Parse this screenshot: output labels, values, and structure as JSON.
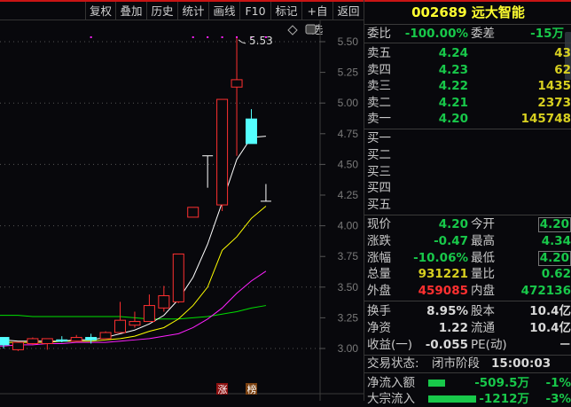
{
  "toolbar": {
    "tabs": [
      "复权",
      "叠加",
      "历史",
      "统计",
      "画线",
      "F10",
      "标记",
      "+自选",
      "返回"
    ]
  },
  "stock": {
    "code": "002689",
    "name": "远大智能",
    "title": "002689 远大智能"
  },
  "colors": {
    "up": "#ff3030",
    "down": "#54ffff",
    "ma5": "#ffffff",
    "ma10": "#ffff00",
    "ma20": "#ff20ff",
    "ma60": "#00e000",
    "accent": "#c81414"
  },
  "chart_data": {
    "type": "candlestick",
    "y_axis_ticks": [
      "5.50",
      "5.25",
      "5.00",
      "4.75",
      "4.50",
      "4.25",
      "4.00",
      "3.75",
      "3.50",
      "3.25",
      "3.00"
    ],
    "ylim": [
      3.0,
      5.5
    ],
    "max_label": "5.53",
    "candles": [
      {
        "o": 3.09,
        "h": 3.09,
        "l": 3.0,
        "c": 3.03
      },
      {
        "o": 2.99,
        "h": 3.05,
        "l": 2.98,
        "c": 3.05
      },
      {
        "o": 3.04,
        "h": 3.09,
        "l": 3.03,
        "c": 3.08
      },
      {
        "o": 3.04,
        "h": 3.08,
        "l": 2.99,
        "c": 3.08
      },
      {
        "o": 3.07,
        "h": 3.1,
        "l": 3.05,
        "c": 3.06
      },
      {
        "o": 3.06,
        "h": 3.11,
        "l": 3.06,
        "c": 3.09
      },
      {
        "o": 3.09,
        "h": 3.12,
        "l": 3.04,
        "c": 3.07
      },
      {
        "o": 3.08,
        "h": 3.14,
        "l": 3.08,
        "c": 3.13
      },
      {
        "o": 3.13,
        "h": 3.38,
        "l": 3.13,
        "c": 3.23
      },
      {
        "o": 3.19,
        "h": 3.3,
        "l": 3.17,
        "c": 3.22
      },
      {
        "o": 3.22,
        "h": 3.44,
        "l": 3.22,
        "c": 3.35
      },
      {
        "o": 3.33,
        "h": 3.51,
        "l": 3.3,
        "c": 3.43
      },
      {
        "o": 3.38,
        "h": 3.77,
        "l": 3.37,
        "c": 3.77
      },
      {
        "o": 4.07,
        "h": 4.15,
        "l": 4.07,
        "c": 4.15
      },
      {
        "o": 4.57,
        "h": 4.57,
        "l": 4.31,
        "c": 4.57
      },
      {
        "o": 4.17,
        "h": 5.03,
        "l": 4.12,
        "c": 5.03
      },
      {
        "o": 5.13,
        "h": 5.53,
        "l": 4.57,
        "c": 5.19
      },
      {
        "o": 4.87,
        "h": 4.95,
        "l": 4.67,
        "c": 4.67
      },
      {
        "o": 4.2,
        "h": 4.34,
        "l": 4.2,
        "c": 4.2
      }
    ],
    "ma5": [
      3.07,
      3.06,
      3.06,
      3.06,
      3.06,
      3.07,
      3.07,
      3.09,
      3.12,
      3.15,
      3.2,
      3.27,
      3.4,
      3.58,
      3.85,
      4.19,
      4.54,
      4.72,
      4.73
    ],
    "ma10": [
      3.05,
      3.05,
      3.05,
      3.05,
      3.06,
      3.06,
      3.06,
      3.07,
      3.08,
      3.1,
      3.14,
      3.17,
      3.24,
      3.35,
      3.5,
      3.8,
      3.91,
      4.06,
      4.16
    ],
    "ma20": [
      3.02,
      3.03,
      3.03,
      3.04,
      3.04,
      3.05,
      3.05,
      3.05,
      3.06,
      3.07,
      3.08,
      3.1,
      3.12,
      3.17,
      3.24,
      3.33,
      3.45,
      3.55,
      3.63
    ],
    "ma60": [
      3.27,
      3.27,
      3.26,
      3.26,
      3.26,
      3.26,
      3.26,
      3.26,
      3.26,
      3.25,
      3.24,
      3.24,
      3.24,
      3.25,
      3.26,
      3.28,
      3.3,
      3.33,
      3.35
    ],
    "marker_dots": [
      6,
      13,
      14,
      15,
      16,
      17,
      18
    ],
    "badges": [
      "涨",
      "榜"
    ]
  },
  "panel": {
    "weibi": {
      "label": "委比",
      "value": "-100.00%",
      "label2": "委差",
      "value2": "-15万"
    },
    "asks": [
      {
        "label": "卖五",
        "price": "4.24",
        "vol": "43"
      },
      {
        "label": "卖四",
        "price": "4.23",
        "vol": "62"
      },
      {
        "label": "卖三",
        "price": "4.22",
        "vol": "1435"
      },
      {
        "label": "卖二",
        "price": "4.21",
        "vol": "2373"
      },
      {
        "label": "卖一",
        "price": "4.20",
        "vol": "145748"
      }
    ],
    "bids": [
      {
        "label": "买一"
      },
      {
        "label": "买二"
      },
      {
        "label": "买三"
      },
      {
        "label": "买四"
      },
      {
        "label": "买五"
      }
    ],
    "quote": [
      {
        "l1": "现价",
        "v1": "4.20",
        "l2": "今开",
        "v2": "4.20"
      },
      {
        "l1": "涨跌",
        "v1": "-0.47",
        "l2": "最高",
        "v2": "4.34"
      },
      {
        "l1": "涨幅",
        "v1": "-10.06%",
        "l2": "最低",
        "v2": "4.20"
      },
      {
        "l1": "总量",
        "v1": "931221",
        "l2": "量比",
        "v2": "0.62"
      },
      {
        "l1": "外盘",
        "v1": "459085",
        "l2": "内盘",
        "v2": "472136"
      }
    ],
    "fund": [
      {
        "l1": "换手",
        "v1": "8.95%",
        "l2": "股本",
        "v2": "10.4亿"
      },
      {
        "l1": "净资",
        "v1": "1.22",
        "l2": "流通",
        "v2": "10.4亿"
      },
      {
        "l1": "收益(一)",
        "v1": "-0.055",
        "l2": "PE(动)",
        "v2": "－"
      }
    ],
    "status": {
      "label": "交易状态:",
      "value": "闭市阶段",
      "time": "15:00:03"
    },
    "flows": [
      {
        "label": "净流入额",
        "value": "-509.5万",
        "pct": "-1%",
        "bar": 0.35
      },
      {
        "label": "大宗流入",
        "value": "-1212万",
        "pct": "-3%",
        "bar": 1.0
      }
    ]
  }
}
